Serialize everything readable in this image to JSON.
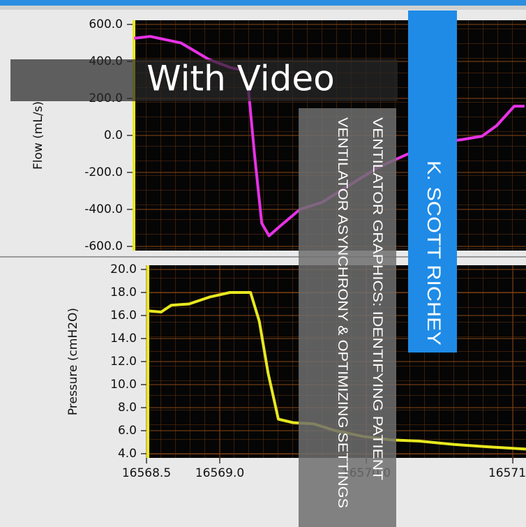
{
  "chart_data": [
    {
      "type": "line",
      "y_label": "Flow (mL/s)",
      "color": "#e632e6",
      "x": [
        16568.41,
        16568.52,
        16568.73,
        16568.92,
        16569.07,
        16569.14,
        16569.19,
        16569.23,
        16569.28,
        16569.33,
        16569.4,
        16569.54,
        16569.69,
        16569.88,
        16570.07,
        16570.26,
        16570.45,
        16570.64,
        16570.78,
        16570.88,
        16571.0,
        16571.07
      ],
      "values": [
        525,
        535,
        500,
        411,
        366,
        355,
        241,
        -98,
        -475,
        -543,
        -494,
        -400,
        -362,
        -268,
        -174,
        -106,
        -42,
        -23,
        -4,
        53,
        158,
        158
      ],
      "xlim": [
        16568.4,
        16571.08
      ],
      "ylim": [
        -600,
        600
      ],
      "yticks": [
        {
          "value": 600,
          "label": "600.0"
        },
        {
          "value": 400,
          "label": "400.0"
        },
        {
          "value": 200,
          "label": "200.0"
        },
        {
          "value": 0,
          "label": "0.0"
        },
        {
          "value": -200,
          "label": "-200.0"
        },
        {
          "value": -400,
          "label": "-400.0"
        },
        {
          "value": -600,
          "label": "-600.0"
        }
      ],
      "grid": true
    },
    {
      "type": "line",
      "y_label": "Pressure (cmH2O)",
      "color": "#e8e820",
      "x": [
        16568.51,
        16568.6,
        16568.67,
        16568.79,
        16568.93,
        16569.07,
        16569.21,
        16569.27,
        16569.33,
        16569.4,
        16569.5,
        16569.64,
        16569.79,
        16569.98,
        16570.17,
        16570.36,
        16570.6,
        16570.83,
        16571.09
      ],
      "values": [
        16.4,
        16.3,
        16.9,
        17.0,
        17.6,
        18.0,
        18.0,
        15.5,
        11.0,
        7.0,
        6.7,
        6.6,
        6.0,
        5.5,
        5.2,
        5.1,
        4.8,
        4.6,
        4.4
      ],
      "xlim": [
        16568.5,
        16571.09
      ],
      "ylim": [
        4,
        20
      ],
      "yticks": [
        {
          "value": 20,
          "label": "20.0"
        },
        {
          "value": 18,
          "label": "18.0"
        },
        {
          "value": 16,
          "label": "16.0"
        },
        {
          "value": 14,
          "label": "14.0"
        },
        {
          "value": 12,
          "label": "12.0"
        },
        {
          "value": 10,
          "label": "10.0"
        },
        {
          "value": 8,
          "label": "8.0"
        },
        {
          "value": 6,
          "label": "6.0"
        },
        {
          "value": 4,
          "label": "4.0"
        }
      ],
      "xticks": [
        16568.5,
        {
          "value": 16569,
          "label": "16569.0"
        },
        {
          "value": 16570,
          "label": "16570.0"
        },
        {
          "value": 16571,
          "label": "16571.0"
        }
      ],
      "grid": true
    }
  ],
  "cover": {
    "badge": "With Video",
    "title_lines": [
      "VENTILATOR GRAPHICS: IDENTIFYING PATIENT",
      "VENTILATOR ASYNCHRONY & OPTIMIZING SETTINGS"
    ],
    "author": "K. SCOTT RICHEY"
  }
}
